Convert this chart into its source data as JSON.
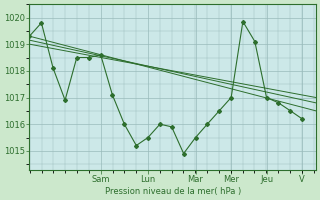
{
  "background_color": "#cce8cc",
  "plot_bg_color": "#cce8e8",
  "grid_color": "#99bbbb",
  "line_color": "#2d6e2d",
  "ylabel": "Pression niveau de la mer( hPa )",
  "ylim": [
    1014.3,
    1020.5
  ],
  "yticks": [
    1015,
    1016,
    1017,
    1018,
    1019,
    1020
  ],
  "day_labels": [
    "Sam",
    "Lun",
    "Mar",
    "Mer",
    "Jeu",
    "V"
  ],
  "day_positions": [
    0.286,
    0.476,
    0.667,
    0.81,
    0.952,
    1.095
  ],
  "xlim": [
    0,
    1.15
  ],
  "series1_x": [
    0.0,
    0.048,
    0.095,
    0.143,
    0.19,
    0.238,
    0.286,
    0.333,
    0.381,
    0.429,
    0.476,
    0.524,
    0.571,
    0.619,
    0.667,
    0.714,
    0.762,
    0.81,
    0.857,
    0.905,
    0.952,
    1.0,
    1.048,
    1.095
  ],
  "series1_y": [
    1019.3,
    1019.8,
    1018.1,
    1016.9,
    1018.5,
    1018.5,
    1018.6,
    1017.1,
    1016.0,
    1015.2,
    1015.5,
    1016.0,
    1015.9,
    1014.9,
    1015.5,
    1016.0,
    1016.5,
    1017.0,
    1019.85,
    1019.1,
    1017.0,
    1016.8,
    1016.5,
    1016.2
  ],
  "trend1_x": [
    0.0,
    1.15
  ],
  "trend1_y": [
    1019.3,
    1016.5
  ],
  "trend2_x": [
    0.0,
    1.15
  ],
  "trend2_y": [
    1019.15,
    1016.8
  ],
  "trend3_x": [
    0.0,
    1.15
  ],
  "trend3_y": [
    1019.0,
    1017.0
  ]
}
